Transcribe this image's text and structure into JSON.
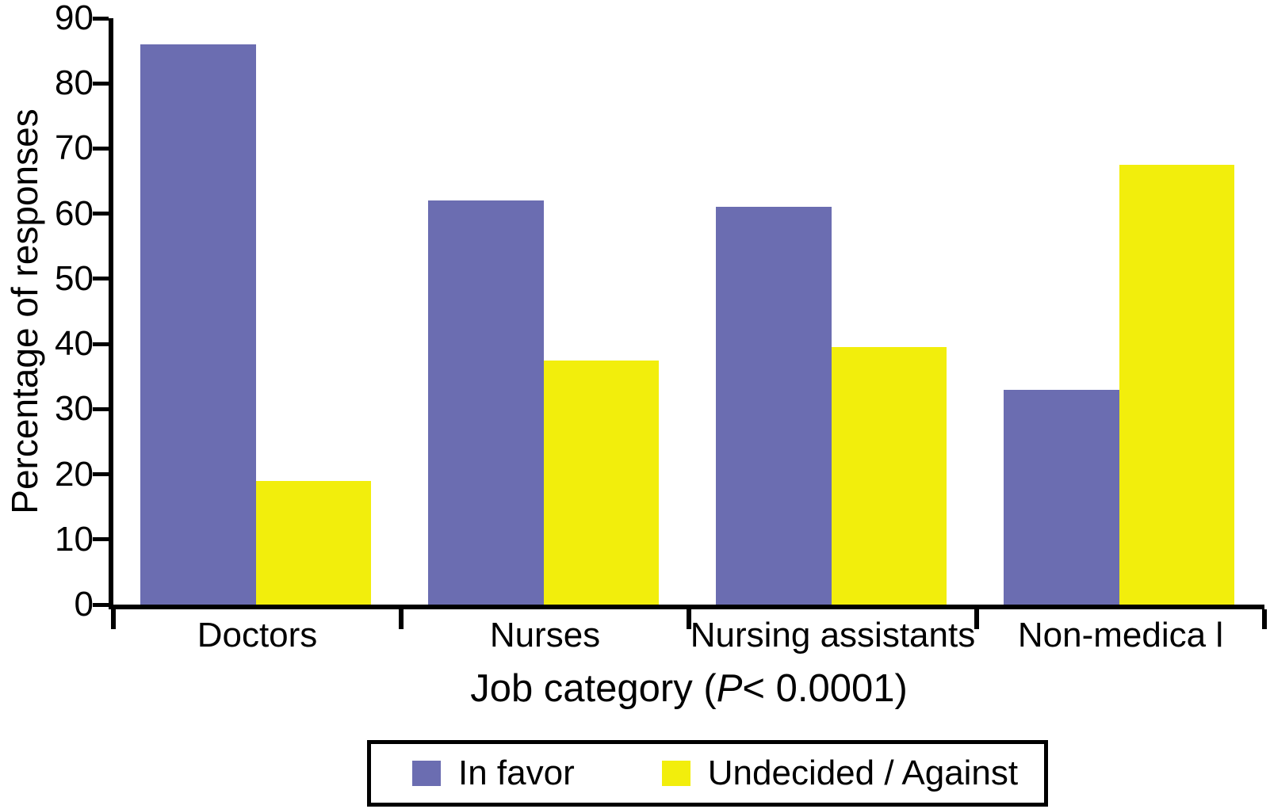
{
  "chart_data": {
    "type": "bar",
    "title": "",
    "categories": [
      "Doctors",
      "Nurses",
      "Nursing assistants",
      "Non-medica l"
    ],
    "series": [
      {
        "name": "In favor",
        "color": "#6b6db1",
        "values": [
          86,
          62,
          61,
          33
        ]
      },
      {
        "name": "Undecided / Against",
        "color": "#f2ee0c",
        "values": [
          19,
          37.5,
          39.5,
          67.5
        ]
      }
    ],
    "xlabel": "Job category (P< 0.0001)",
    "xlabel_parts": {
      "prefix": "Job category (",
      "italic": "P",
      "suffix": "< 0.0001)"
    },
    "ylabel": "Percentage of responses",
    "ylim": [
      0,
      90
    ],
    "yticks": [
      0,
      10,
      20,
      30,
      40,
      50,
      60,
      70,
      80,
      90
    ],
    "grid": false,
    "legend_position": "bottom-center",
    "axis_color": "#000000",
    "background_color": "#ffffff"
  }
}
